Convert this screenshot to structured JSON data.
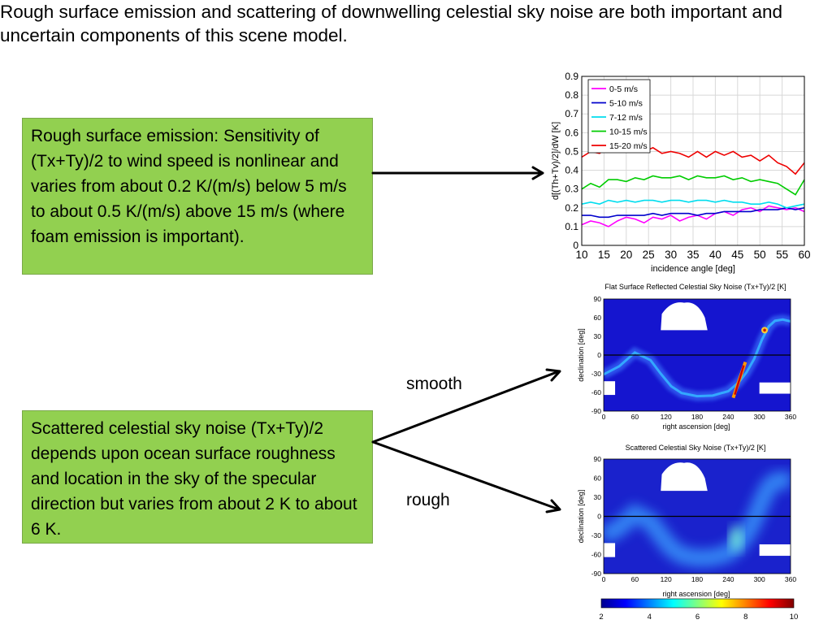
{
  "slide": {
    "headline": "Rough surface emission and scattering of downwelling celestial sky noise are both important and uncertain components of this scene model.",
    "box_emission": "Rough surface emission: Sensitivity of (Tx+Ty)/2 to wind speed is nonlinear and varies from about 0.2 K/(m/s) below 5 m/s to about 0.5 K/(m/s) above 15 m/s (where foam emission is important).",
    "box_scatter": "Scattered celestial sky noise (Tx+Ty)/2 depends upon ocean surface roughness and location in the sky of the specular direction but varies from about 2 K to about 6 K.",
    "label_smooth": "smooth",
    "label_rough": "rough",
    "box_color": "#92d050"
  },
  "chart_data": [
    {
      "type": "line",
      "xlabel": "incidence angle [deg]",
      "ylabel": "d[(Th+Tv)/2]/dW [K]",
      "xlim": [
        10,
        60
      ],
      "ylim": [
        0,
        0.9
      ],
      "x_ticks": [
        "10",
        "15",
        "20",
        "25",
        "30",
        "35",
        "40",
        "45",
        "50",
        "55",
        "60"
      ],
      "y_ticks": [
        "0",
        "0.1",
        "0.2",
        "0.3",
        "0.4",
        "0.5",
        "0.6",
        "0.7",
        "0.8",
        "0.9"
      ],
      "grid": true,
      "legend_position": "top-left",
      "x": [
        10,
        12,
        14,
        16,
        18,
        20,
        22,
        24,
        26,
        28,
        30,
        32,
        34,
        36,
        38,
        40,
        42,
        44,
        46,
        48,
        50,
        52,
        54,
        56,
        58,
        60
      ],
      "series": [
        {
          "name": "0-5 m/s",
          "color": "#ff00ff",
          "values": [
            0.11,
            0.13,
            0.12,
            0.1,
            0.13,
            0.15,
            0.14,
            0.12,
            0.15,
            0.14,
            0.16,
            0.13,
            0.15,
            0.16,
            0.14,
            0.17,
            0.18,
            0.16,
            0.19,
            0.2,
            0.18,
            0.21,
            0.2,
            0.19,
            0.2,
            0.18
          ]
        },
        {
          "name": "5-10 m/s",
          "color": "#0000cc",
          "values": [
            0.16,
            0.16,
            0.15,
            0.15,
            0.16,
            0.16,
            0.16,
            0.16,
            0.17,
            0.16,
            0.17,
            0.17,
            0.17,
            0.16,
            0.17,
            0.17,
            0.18,
            0.18,
            0.18,
            0.18,
            0.19,
            0.19,
            0.19,
            0.2,
            0.19,
            0.2
          ]
        },
        {
          "name": "7-12 m/s",
          "color": "#00ddee",
          "values": [
            0.22,
            0.23,
            0.22,
            0.24,
            0.23,
            0.24,
            0.23,
            0.24,
            0.24,
            0.23,
            0.24,
            0.24,
            0.23,
            0.24,
            0.24,
            0.23,
            0.24,
            0.23,
            0.23,
            0.22,
            0.22,
            0.23,
            0.22,
            0.2,
            0.21,
            0.22
          ]
        },
        {
          "name": "10-15 m/s",
          "color": "#00cc00",
          "values": [
            0.3,
            0.33,
            0.31,
            0.35,
            0.35,
            0.34,
            0.36,
            0.35,
            0.37,
            0.36,
            0.36,
            0.37,
            0.35,
            0.37,
            0.36,
            0.36,
            0.37,
            0.35,
            0.36,
            0.34,
            0.35,
            0.34,
            0.33,
            0.3,
            0.27,
            0.35
          ]
        },
        {
          "name": "15-20 m/s",
          "color": "#ee0000",
          "values": [
            0.47,
            0.5,
            0.49,
            0.53,
            0.51,
            0.5,
            0.52,
            0.5,
            0.52,
            0.49,
            0.5,
            0.49,
            0.47,
            0.5,
            0.47,
            0.5,
            0.48,
            0.5,
            0.47,
            0.48,
            0.45,
            0.48,
            0.44,
            0.42,
            0.38,
            0.44
          ]
        }
      ]
    },
    {
      "type": "heatmap",
      "title": "Flat Surface Reflected Celestial Sky Noise (Tx+Ty)/2 [K]",
      "xlabel": "right ascension [deg]",
      "ylabel": "declination [deg]",
      "xlim": [
        0,
        360
      ],
      "ylim": [
        -90,
        90
      ],
      "x_ticks": [
        "0",
        "60",
        "120",
        "180",
        "240",
        "300",
        "360"
      ],
      "y_ticks": [
        "90",
        "60",
        "30",
        "0",
        "-30",
        "-60",
        "-90"
      ],
      "background": "#1515cf",
      "band_color": "#33a8ff",
      "band_path": [
        [
          0,
          -31
        ],
        [
          30,
          -18
        ],
        [
          60,
          4
        ],
        [
          90,
          -8
        ],
        [
          110,
          -30
        ],
        [
          130,
          -50
        ],
        [
          150,
          -61
        ],
        [
          180,
          -66
        ],
        [
          210,
          -65
        ],
        [
          240,
          -58
        ],
        [
          260,
          -44
        ],
        [
          275,
          -28
        ],
        [
          290,
          -6
        ],
        [
          305,
          25
        ],
        [
          318,
          46
        ],
        [
          330,
          55
        ],
        [
          345,
          57
        ],
        [
          360,
          54
        ]
      ],
      "hotspot": {
        "ra": 262,
        "dec": -40
      },
      "secondary_spot": {
        "ra": 310,
        "dec": 40
      }
    },
    {
      "type": "heatmap",
      "title": "Scattered Celestial Sky Noise (Tx+Ty)/2 [K]",
      "xlabel": "right ascension [deg]",
      "ylabel": "declination [deg]",
      "xlim": [
        0,
        360
      ],
      "ylim": [
        -90,
        90
      ],
      "x_ticks": [
        "0",
        "60",
        "120",
        "180",
        "240",
        "300",
        "360"
      ],
      "y_ticks": [
        "90",
        "60",
        "30",
        "0",
        "-30",
        "-60",
        "-90"
      ],
      "background": "#1a22cc",
      "band_color": "#3aa0ff",
      "band_path": [
        [
          0,
          -31
        ],
        [
          30,
          -18
        ],
        [
          60,
          4
        ],
        [
          90,
          -8
        ],
        [
          110,
          -30
        ],
        [
          130,
          -50
        ],
        [
          150,
          -61
        ],
        [
          180,
          -66
        ],
        [
          210,
          -65
        ],
        [
          240,
          -58
        ],
        [
          260,
          -44
        ],
        [
          275,
          -28
        ],
        [
          290,
          -6
        ],
        [
          305,
          25
        ],
        [
          318,
          46
        ],
        [
          330,
          55
        ],
        [
          345,
          57
        ],
        [
          360,
          54
        ]
      ],
      "hotspot": {
        "ra": 255,
        "dec": -35
      }
    },
    {
      "type": "colorbar",
      "ticks": [
        "2",
        "4",
        "6",
        "8",
        "10"
      ],
      "range": [
        2,
        10
      ],
      "colormap": [
        "#00008f",
        "#0000ff",
        "#0080ff",
        "#00ffff",
        "#80ff80",
        "#ffff00",
        "#ff8000",
        "#ff0000",
        "#800000"
      ]
    }
  ]
}
